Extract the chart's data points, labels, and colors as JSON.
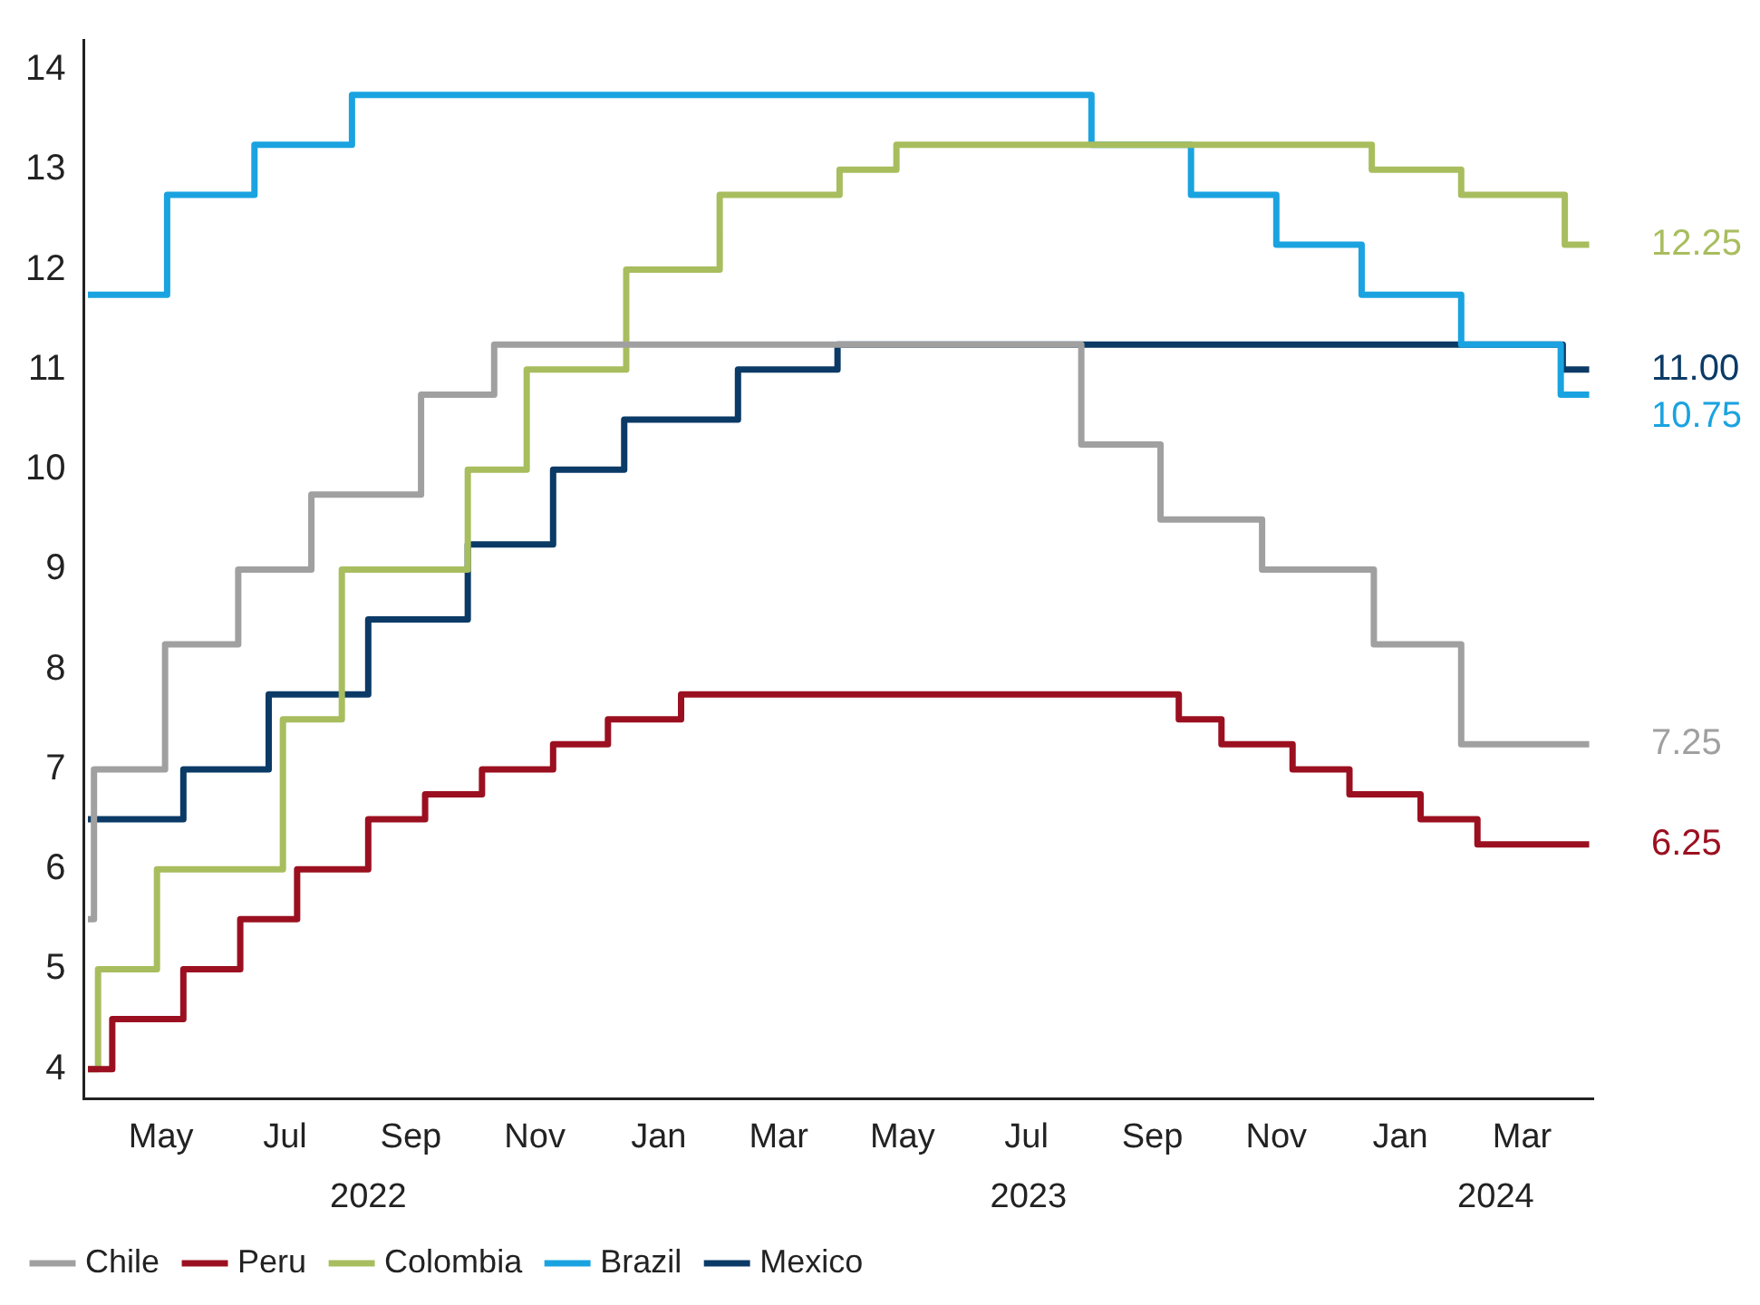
{
  "chart_data": {
    "type": "step",
    "xlim": [
      "2022-03-24",
      "2024-04-05"
    ],
    "ylim": [
      3.7,
      14.3
    ],
    "yticks": [
      4,
      5,
      6,
      7,
      8,
      9,
      10,
      11,
      12,
      13,
      14
    ],
    "xticks": [
      {
        "value": "2022-05-01",
        "label": "May"
      },
      {
        "value": "2022-07-01",
        "label": "Jul"
      },
      {
        "value": "2022-09-01",
        "label": "Sep"
      },
      {
        "value": "2022-11-01",
        "label": "Nov"
      },
      {
        "value": "2023-01-01",
        "label": "Jan"
      },
      {
        "value": "2023-03-01",
        "label": "Mar"
      },
      {
        "value": "2023-05-01",
        "label": "May"
      },
      {
        "value": "2023-07-01",
        "label": "Jul"
      },
      {
        "value": "2023-09-01",
        "label": "Sep"
      },
      {
        "value": "2023-11-01",
        "label": "Nov"
      },
      {
        "value": "2024-01-01",
        "label": "Jan"
      },
      {
        "value": "2024-03-01",
        "label": "Mar"
      }
    ],
    "x2lim": [
      "2022-03-24",
      "2024-04-05"
    ],
    "x2ticks": [
      {
        "value": "2022-08-11",
        "label": "2022"
      },
      {
        "value": "2023-07-02",
        "label": "2023"
      },
      {
        "value": "2024-02-17",
        "label": "2024"
      }
    ],
    "legend": "bottom left",
    "marker": "none",
    "line_style": "solid",
    "series": [
      {
        "name": "Chile",
        "color": "#a0a0a0",
        "x": [
          "2022-03-26",
          "2022-03-29",
          "2022-05-03",
          "2022-06-08",
          "2022-07-14",
          "2022-09-06",
          "2022-10-12",
          "2023-07-28",
          "2023-09-05",
          "2023-10-25",
          "2023-12-19",
          "2024-01-31",
          "2024-04-03"
        ],
        "values": [
          5.5,
          7.0,
          8.25,
          9.0,
          9.75,
          10.75,
          11.25,
          10.25,
          9.5,
          9.0,
          8.25,
          7.25,
          7.25
        ],
        "value_labels": [
          null,
          null,
          null,
          null,
          null,
          null,
          null,
          null,
          null,
          null,
          null,
          null,
          "7.25"
        ]
      },
      {
        "name": "Peru",
        "color": "#9b1020",
        "x": [
          "2022-03-26",
          "2022-04-07",
          "2022-05-12",
          "2022-06-09",
          "2022-07-07",
          "2022-08-11",
          "2022-09-08",
          "2022-10-06",
          "2022-11-10",
          "2022-12-07",
          "2023-01-12",
          "2023-09-14",
          "2023-10-05",
          "2023-11-09",
          "2023-12-07",
          "2024-01-11",
          "2024-02-08",
          "2024-04-03"
        ],
        "values": [
          4.0,
          4.5,
          5.0,
          5.5,
          6.0,
          6.5,
          6.75,
          7.0,
          7.25,
          7.5,
          7.75,
          7.5,
          7.25,
          7.0,
          6.75,
          6.5,
          6.25,
          6.25
        ],
        "value_labels": [
          null,
          null,
          null,
          null,
          null,
          null,
          null,
          null,
          null,
          null,
          null,
          null,
          null,
          null,
          null,
          null,
          null,
          "6.25"
        ]
      },
      {
        "name": "Colombia",
        "color": "#a8bd5e",
        "x": [
          "2022-03-26",
          "2022-03-31",
          "2022-04-29",
          "2022-06-30",
          "2022-07-29",
          "2022-09-29",
          "2022-10-28",
          "2022-12-16",
          "2023-01-31",
          "2023-03-31",
          "2023-04-28",
          "2023-12-18",
          "2024-01-31",
          "2024-03-22",
          "2024-04-03"
        ],
        "values": [
          4.0,
          5.0,
          6.0,
          7.5,
          9.0,
          10.0,
          11.0,
          12.0,
          12.75,
          13.0,
          13.25,
          13.0,
          12.75,
          12.25,
          12.25
        ],
        "value_labels": [
          null,
          null,
          null,
          null,
          null,
          null,
          null,
          null,
          null,
          null,
          null,
          null,
          null,
          null,
          "12.25"
        ]
      },
      {
        "name": "Brazil",
        "color": "#1aa3e0",
        "x": [
          "2022-03-26",
          "2022-05-04",
          "2022-06-16",
          "2022-08-03",
          "2023-08-02",
          "2023-09-20",
          "2023-11-01",
          "2023-12-13",
          "2024-01-31",
          "2024-03-20",
          "2024-04-03"
        ],
        "values": [
          11.75,
          12.75,
          13.25,
          13.75,
          13.25,
          12.75,
          12.25,
          11.75,
          11.25,
          10.75,
          10.75
        ],
        "value_labels": [
          null,
          null,
          null,
          null,
          null,
          null,
          null,
          null,
          null,
          null,
          "10.75"
        ]
      },
      {
        "name": "Mexico",
        "color": "#0b3a66",
        "x": [
          "2022-03-26",
          "2022-05-12",
          "2022-06-23",
          "2022-08-11",
          "2022-09-29",
          "2022-11-10",
          "2022-12-15",
          "2023-02-09",
          "2023-03-30",
          "2024-03-21",
          "2024-04-03"
        ],
        "values": [
          6.5,
          7.0,
          7.75,
          8.5,
          9.25,
          10.0,
          10.5,
          11.0,
          11.25,
          11.0,
          11.0
        ],
        "value_labels": [
          null,
          null,
          null,
          null,
          null,
          null,
          null,
          null,
          null,
          null,
          "11.00"
        ]
      }
    ]
  }
}
